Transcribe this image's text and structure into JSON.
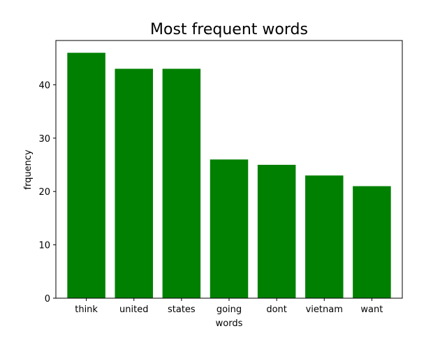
{
  "chart_data": {
    "type": "bar",
    "title": "Most frequent words",
    "xlabel": "words",
    "ylabel": "frquency",
    "categories": [
      "think",
      "united",
      "states",
      "going",
      "dont",
      "vietnam",
      "want"
    ],
    "values": [
      46,
      43,
      43,
      26,
      25,
      23,
      21
    ],
    "ylim": [
      0,
      48.3
    ],
    "yticks": [
      0,
      10,
      20,
      30,
      40
    ],
    "bar_color": "#008000",
    "grid": false,
    "legend": "none"
  }
}
